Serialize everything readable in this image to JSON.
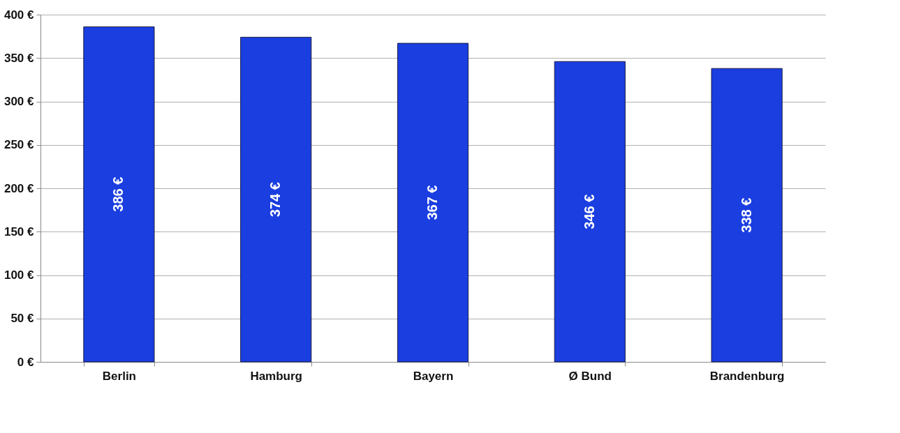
{
  "chart_data": {
    "type": "bar",
    "categories": [
      "Berlin",
      "Hamburg",
      "Bayern",
      "Ø Bund",
      "Brandenburg"
    ],
    "values": [
      386,
      374,
      367,
      346,
      338
    ],
    "value_labels": [
      "386 €",
      "374 €",
      "367 €",
      "346 €",
      "338 €"
    ],
    "color": "#1a3ee0",
    "ylim": [
      0,
      400
    ],
    "yticks": [
      {
        "value": 0,
        "label": "0 €"
      },
      {
        "value": 50,
        "label": "50 €"
      },
      {
        "value": 100,
        "label": "100 €"
      },
      {
        "value": 150,
        "label": "150 €"
      },
      {
        "value": 200,
        "label": "200 €"
      },
      {
        "value": 250,
        "label": "250 €"
      },
      {
        "value": 300,
        "label": "300 €"
      },
      {
        "value": 350,
        "label": "350 €"
      },
      {
        "value": 400,
        "label": "400 €"
      }
    ],
    "grid": "y"
  }
}
